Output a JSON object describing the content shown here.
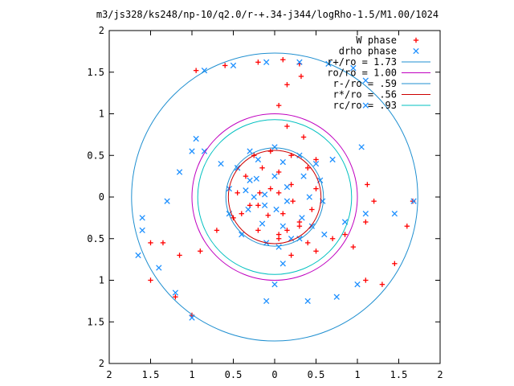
{
  "chart_data": {
    "type": "scatter",
    "title": "m3/js328/ks248/np-10/q2.0/r-+.34-j344/logRho-1.5/M1.00/1024",
    "xlim": [
      -2,
      2
    ],
    "ylim": [
      -2,
      2
    ],
    "x_tick_labels": [
      {
        "value": -2,
        "label": "2"
      },
      {
        "value": -1.5,
        "label": "1.5"
      },
      {
        "value": -1,
        "label": "1"
      },
      {
        "value": -0.5,
        "label": "0.5"
      },
      {
        "value": 0,
        "label": "0"
      },
      {
        "value": 0.5,
        "label": "0.5"
      },
      {
        "value": 1,
        "label": "1"
      },
      {
        "value": 1.5,
        "label": "1.5"
      },
      {
        "value": 2,
        "label": "2"
      }
    ],
    "y_tick_labels": [
      {
        "value": 2,
        "label": "2"
      },
      {
        "value": 1.5,
        "label": "1.5"
      },
      {
        "value": 1,
        "label": "1"
      },
      {
        "value": 0.5,
        "label": "0.5"
      },
      {
        "value": 0,
        "label": "0"
      },
      {
        "value": -0.5,
        "label": "0.5"
      },
      {
        "value": -1,
        "label": "1"
      },
      {
        "value": -1.5,
        "label": "1.5"
      },
      {
        "value": -2,
        "label": "2"
      }
    ],
    "grid": false,
    "legend_position": "top-right",
    "series": [
      {
        "name": "W phase",
        "kind": "points",
        "marker": "+",
        "color": "#ff0000",
        "points": [
          [
            -0.95,
            1.52
          ],
          [
            -0.6,
            1.58
          ],
          [
            -0.2,
            1.62
          ],
          [
            0.1,
            1.65
          ],
          [
            0.3,
            1.6
          ],
          [
            0.32,
            1.45
          ],
          [
            0.15,
            1.35
          ],
          [
            0.05,
            1.1
          ],
          [
            0.15,
            0.85
          ],
          [
            0.35,
            0.72
          ],
          [
            0.5,
            0.45
          ],
          [
            1.12,
            0.15
          ],
          [
            1.2,
            -0.05
          ],
          [
            1.1,
            -0.3
          ],
          [
            0.85,
            -0.45
          ],
          [
            0.5,
            -0.65
          ],
          [
            0.2,
            -0.7
          ],
          [
            0.05,
            -0.5
          ],
          [
            0.15,
            -0.4
          ],
          [
            0.3,
            -0.3
          ],
          [
            -1.0,
            -1.42
          ],
          [
            -1.2,
            -1.2
          ],
          [
            -1.5,
            -1.0
          ],
          [
            -1.5,
            -0.55
          ],
          [
            -1.35,
            -0.55
          ],
          [
            -1.15,
            -0.7
          ],
          [
            -0.9,
            -0.65
          ],
          [
            -0.7,
            -0.4
          ],
          [
            -0.5,
            -0.25
          ],
          [
            -0.3,
            -0.1
          ],
          [
            1.67,
            -0.05
          ],
          [
            1.6,
            -0.35
          ],
          [
            1.45,
            -0.8
          ],
          [
            1.3,
            -1.05
          ],
          [
            1.1,
            -1.0
          ],
          [
            0.95,
            -0.6
          ],
          [
            0.7,
            -0.5
          ],
          [
            0.4,
            -0.55
          ],
          [
            -0.25,
            0.5
          ],
          [
            -0.05,
            0.55
          ],
          [
            0.2,
            0.5
          ],
          [
            0.4,
            0.35
          ],
          [
            0.5,
            0.1
          ],
          [
            0.45,
            -0.15
          ],
          [
            0.3,
            -0.35
          ],
          [
            0.05,
            -0.45
          ],
          [
            -0.2,
            -0.4
          ],
          [
            -0.4,
            -0.2
          ],
          [
            -0.45,
            0.05
          ],
          [
            -0.35,
            0.25
          ],
          [
            -0.15,
            0.35
          ],
          [
            0.05,
            0.3
          ],
          [
            0.2,
            0.15
          ],
          [
            0.22,
            -0.05
          ],
          [
            0.1,
            -0.2
          ],
          [
            -0.08,
            -0.22
          ],
          [
            -0.2,
            -0.1
          ],
          [
            -0.18,
            0.05
          ],
          [
            -0.05,
            0.1
          ],
          [
            0.05,
            0.05
          ]
        ]
      },
      {
        "name": "drho phase",
        "kind": "points",
        "marker": "×",
        "color": "#1e90ff",
        "points": [
          [
            -0.85,
            1.52
          ],
          [
            -0.5,
            1.58
          ],
          [
            -0.1,
            1.62
          ],
          [
            0.3,
            1.62
          ],
          [
            0.65,
            1.6
          ],
          [
            0.95,
            1.55
          ],
          [
            1.1,
            1.4
          ],
          [
            1.1,
            1.1
          ],
          [
            1.05,
            0.6
          ],
          [
            0.7,
            0.45
          ],
          [
            0.5,
            0.4
          ],
          [
            1.68,
            -0.05
          ],
          [
            1.45,
            -0.2
          ],
          [
            1.1,
            -0.2
          ],
          [
            0.85,
            -0.3
          ],
          [
            0.6,
            -0.45
          ],
          [
            0.3,
            -0.5
          ],
          [
            0.05,
            -0.6
          ],
          [
            0.1,
            -0.8
          ],
          [
            0.0,
            -1.05
          ],
          [
            -0.1,
            -1.25
          ],
          [
            0.4,
            -1.25
          ],
          [
            0.75,
            -1.2
          ],
          [
            1.0,
            -1.05
          ],
          [
            -1.0,
            -1.45
          ],
          [
            -1.2,
            -1.15
          ],
          [
            -1.4,
            -0.85
          ],
          [
            -1.65,
            -0.7
          ],
          [
            -1.6,
            -0.4
          ],
          [
            -1.6,
            -0.25
          ],
          [
            -1.3,
            -0.05
          ],
          [
            -1.15,
            0.3
          ],
          [
            -1.0,
            0.55
          ],
          [
            -0.95,
            0.7
          ],
          [
            -0.85,
            0.55
          ],
          [
            -0.65,
            0.4
          ],
          [
            -0.45,
            0.35
          ],
          [
            -0.3,
            0.2
          ],
          [
            -0.25,
            0.0
          ],
          [
            -0.3,
            0.55
          ],
          [
            0.0,
            0.6
          ],
          [
            0.3,
            0.5
          ],
          [
            0.55,
            0.2
          ],
          [
            0.58,
            -0.05
          ],
          [
            0.45,
            -0.35
          ],
          [
            0.2,
            -0.5
          ],
          [
            -0.1,
            -0.55
          ],
          [
            -0.4,
            -0.45
          ],
          [
            -0.55,
            -0.2
          ],
          [
            -0.55,
            0.1
          ],
          [
            -0.45,
            0.35
          ],
          [
            -0.2,
            0.45
          ],
          [
            0.1,
            0.42
          ],
          [
            0.35,
            0.25
          ],
          [
            0.42,
            0.0
          ],
          [
            0.33,
            -0.25
          ],
          [
            0.1,
            -0.35
          ],
          [
            -0.15,
            -0.32
          ],
          [
            -0.32,
            -0.15
          ],
          [
            -0.35,
            0.08
          ],
          [
            -0.22,
            0.22
          ],
          [
            0.0,
            0.25
          ],
          [
            0.15,
            0.12
          ],
          [
            0.15,
            -0.05
          ],
          [
            0.02,
            -0.15
          ],
          [
            -0.12,
            -0.1
          ],
          [
            -0.12,
            0.03
          ]
        ]
      },
      {
        "name": "r+/ro = 1.73",
        "kind": "circle",
        "radius": 1.73,
        "color": "#1f8fd0"
      },
      {
        "name": "ro/ro = 1.00",
        "kind": "circle",
        "radius": 1.0,
        "color": "#c000c0"
      },
      {
        "name": "r-/ro = .59",
        "kind": "circle",
        "radius": 0.59,
        "color": "#1f8fd0"
      },
      {
        "name": "r*/ro = .56",
        "kind": "circle",
        "radius": 0.56,
        "color": "#cc0000"
      },
      {
        "name": "rc/ro = .93",
        "kind": "circle",
        "radius": 0.93,
        "color": "#00c0c0"
      }
    ]
  }
}
